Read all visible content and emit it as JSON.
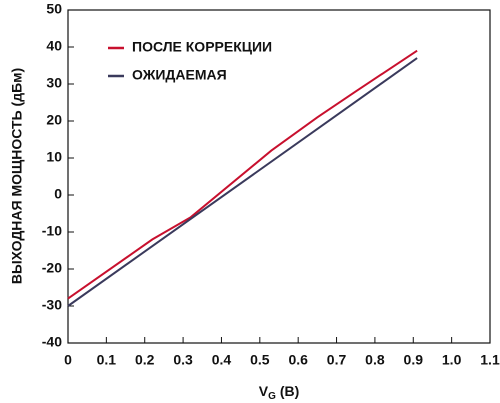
{
  "chart_data": {
    "type": "line",
    "ylabel": "ВЫХОДНАЯ МОЩНОСТЬ (дБм)",
    "xlabel": "V",
    "xlabel_sub": "G",
    "xlabel_unit": "(B)",
    "xlim": [
      0,
      1.1
    ],
    "xticks": [
      0,
      0.1,
      0.2,
      0.3,
      0.4,
      0.5,
      0.6,
      0.7,
      0.8,
      0.9,
      {
        "value": 1,
        "label": "1.0"
      },
      1.1
    ],
    "ylim": [
      -40,
      50
    ],
    "yticks": [
      -40,
      -30,
      -20,
      -10,
      0,
      10,
      20,
      30,
      40,
      50
    ],
    "legend": "upper left",
    "series": [
      {
        "name": "ПОСЛЕ КОРРЕКЦИИ",
        "color": "#c8102e",
        "x": [
          0,
          0.22,
          0.32,
          0.53,
          0.65,
          0.75,
          0.91
        ],
        "values": [
          -28,
          -12,
          -6,
          12,
          21,
          28,
          39
        ]
      },
      {
        "name": "ОЖИДАЕМАЯ",
        "color": "#3a3a5c",
        "x": [
          0,
          0.91
        ],
        "values": [
          -30,
          37
        ]
      }
    ]
  }
}
